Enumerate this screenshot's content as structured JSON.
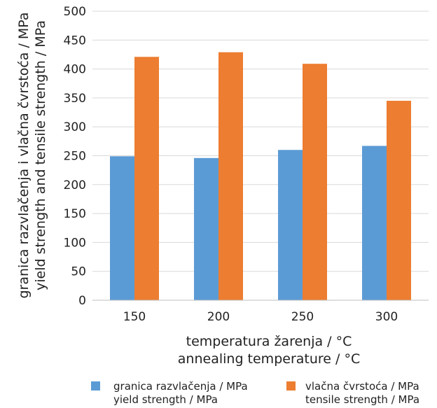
{
  "chart_data": {
    "type": "bar",
    "categories": [
      "150",
      "200",
      "250",
      "300"
    ],
    "series": [
      {
        "name": "granica razvlačenja / MPa",
        "name_en": "yield strength / MPa",
        "color": "#5b9bd5",
        "values": [
          249,
          246,
          260,
          267
        ]
      },
      {
        "name": "vlačna čvrstoća / MPa",
        "name_en": "tensile strength / MPa",
        "color": "#ed7d31",
        "values": [
          421,
          429,
          409,
          345
        ]
      }
    ],
    "xlabel": "temperatura žarenja / °C",
    "xlabel_en": "annealing temperature / °C",
    "ylabel": "granica razvlačenja i vlačna čvrstoća / MPa",
    "ylabel_en": "yield strength and tensile strength / MPa",
    "ylim": [
      0,
      500
    ],
    "yticks": [
      0,
      50,
      100,
      150,
      200,
      250,
      300,
      350,
      400,
      450,
      500
    ],
    "grid": true,
    "legend_position": "bottom"
  }
}
